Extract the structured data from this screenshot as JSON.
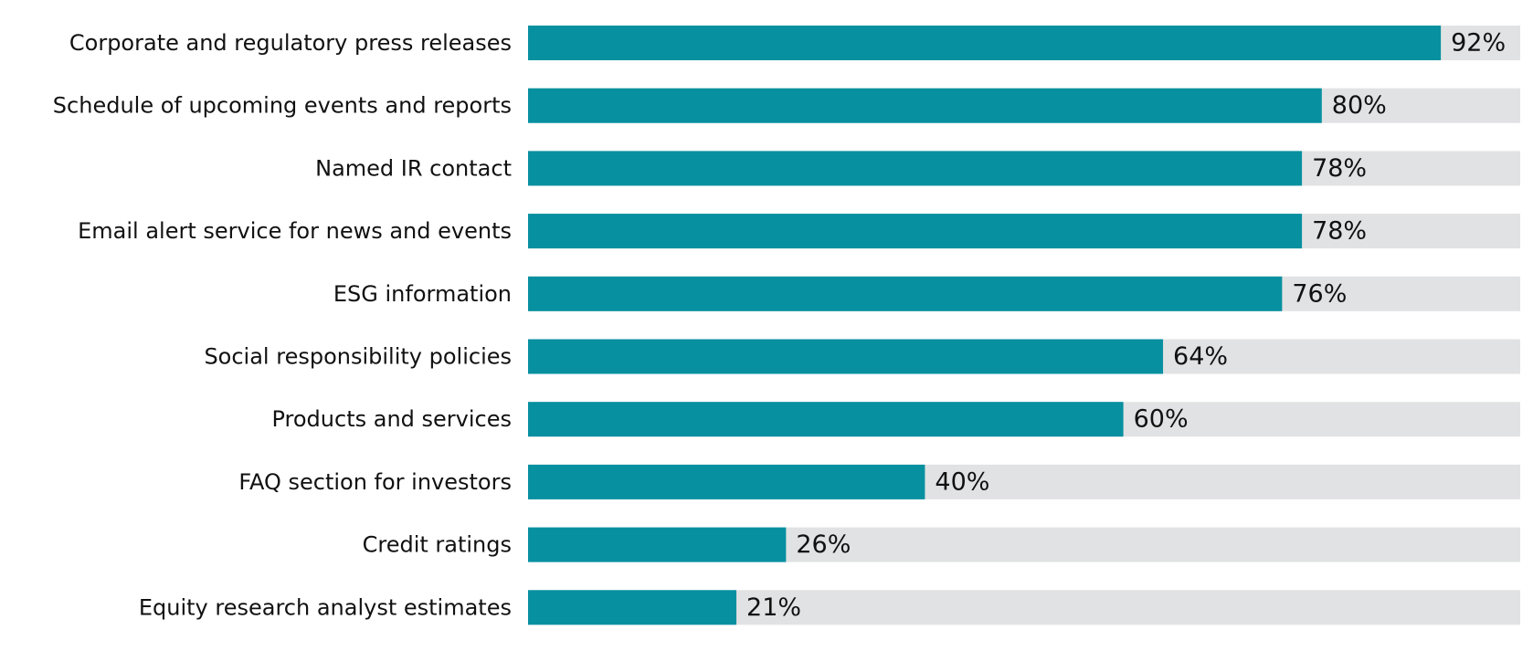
{
  "chart_data": {
    "type": "bar",
    "orientation": "horizontal",
    "categories": [
      "Corporate and regulatory press releases",
      "Schedule of upcoming events and reports",
      "Named IR contact",
      "Email alert service for news and events",
      "ESG information",
      "Social responsibility policies",
      "Products and services",
      "FAQ section for investors",
      "Credit ratings",
      "Equity research analyst estimates"
    ],
    "values": [
      92,
      80,
      78,
      78,
      76,
      64,
      60,
      40,
      26,
      21
    ],
    "value_labels": [
      "92%",
      "80%",
      "78%",
      "78%",
      "76%",
      "64%",
      "60%",
      "40%",
      "26%",
      "21%"
    ],
    "xlim": [
      0,
      100
    ],
    "grid": false,
    "legend": "none",
    "colors": {
      "bar": "#0790A0",
      "track": "#E1E2E3",
      "text": "#111111"
    }
  }
}
